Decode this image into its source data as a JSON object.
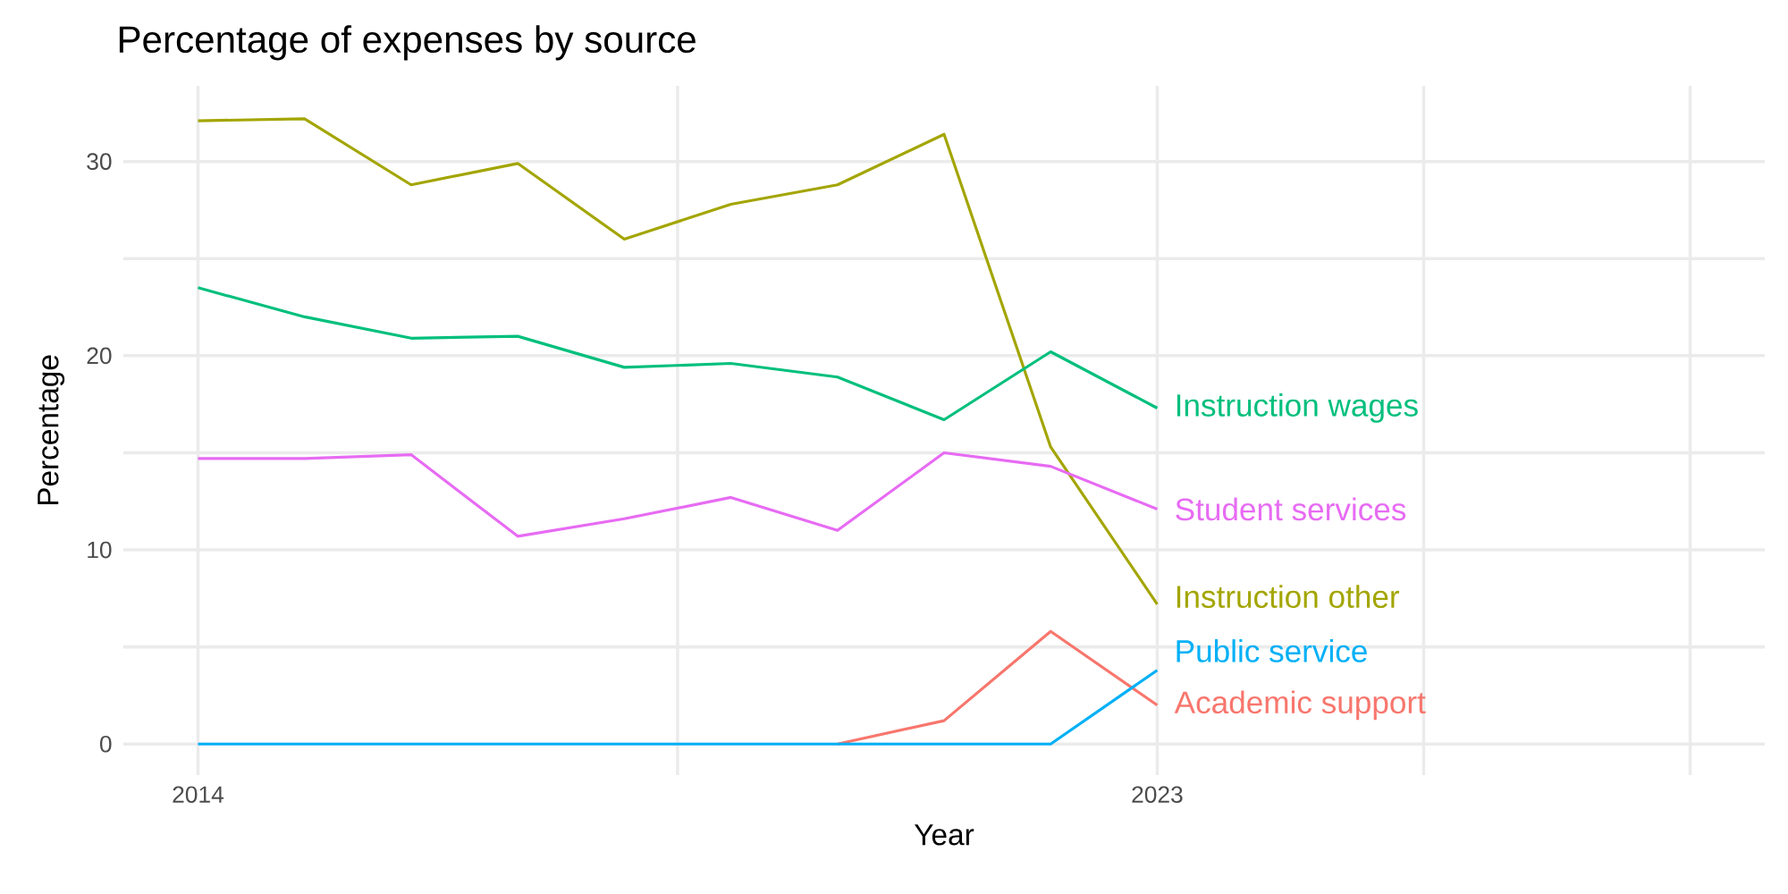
{
  "chart_data": {
    "type": "line",
    "title": "Percentage of expenses by source",
    "xlabel": "Year",
    "ylabel": "Percentage",
    "x": [
      2014,
      2015,
      2016,
      2017,
      2018,
      2019,
      2020,
      2021,
      2022,
      2023
    ],
    "series": [
      {
        "name": "Academic support",
        "color": "#f8766d",
        "values": [
          null,
          null,
          null,
          null,
          null,
          null,
          0,
          1.2,
          5.8,
          2.0
        ]
      },
      {
        "name": "Instruction other",
        "color": "#a3a500",
        "values": [
          32.1,
          32.2,
          28.8,
          29.9,
          26.0,
          27.8,
          28.8,
          31.4,
          15.3,
          7.2
        ]
      },
      {
        "name": "Instruction wages",
        "color": "#00bf7d",
        "values": [
          23.5,
          22.0,
          20.9,
          21.0,
          19.4,
          19.6,
          18.9,
          16.7,
          20.2,
          17.3
        ]
      },
      {
        "name": "Public service",
        "color": "#00b0f6",
        "values": [
          0,
          0,
          0,
          0,
          0,
          0,
          0,
          0,
          0,
          3.8
        ]
      },
      {
        "name": "Student services",
        "color": "#e76bf3",
        "values": [
          14.7,
          14.7,
          14.9,
          10.7,
          11.6,
          12.7,
          11.0,
          15.0,
          14.3,
          12.1
        ]
      }
    ],
    "xlim": [
      2013.3,
      2028.7
    ],
    "ylim": [
      -1.6,
      33.9
    ],
    "xticks": [
      2014,
      {
        "value": 2018.5,
        "label": null
      },
      2023,
      {
        "value": 2025.5,
        "label": null
      },
      {
        "value": 2028,
        "label": null
      }
    ],
    "yticks": [
      0,
      {
        "value": 5,
        "label": null
      },
      10,
      {
        "value": 15,
        "label": null
      },
      20,
      {
        "value": 25,
        "label": null
      },
      30
    ],
    "grid": true,
    "line_style": "solid"
  }
}
